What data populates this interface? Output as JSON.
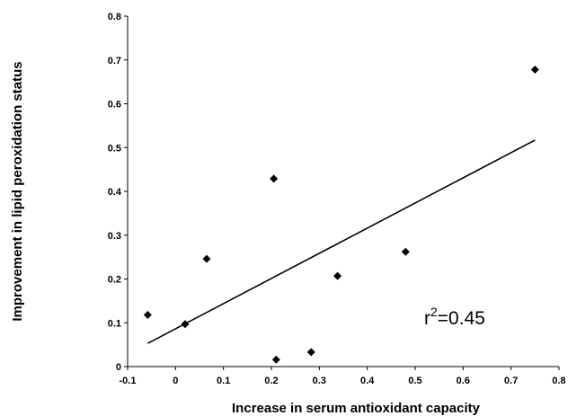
{
  "chart_data": {
    "type": "scatter",
    "xlabel": "Increase in serum antioxidant capacity",
    "ylabel": "Improvement in lipid peroxidation status",
    "xlim": [
      -0.1,
      0.8
    ],
    "ylim": [
      0,
      0.8
    ],
    "xticks": [
      "-0.1",
      "0",
      "0.1",
      "0.2",
      "0.3",
      "0.4",
      "0.5",
      "0.6",
      "0.7",
      "0.8"
    ],
    "yticks": [
      "0",
      "0.1",
      "0.2",
      "0.3",
      "0.4",
      "0.5",
      "0.6",
      "0.7",
      "0.8"
    ],
    "grid": false,
    "points": [
      {
        "x": -0.058,
        "y": 0.118
      },
      {
        "x": 0.02,
        "y": 0.097
      },
      {
        "x": 0.065,
        "y": 0.246
      },
      {
        "x": 0.205,
        "y": 0.429
      },
      {
        "x": 0.21,
        "y": 0.016
      },
      {
        "x": 0.283,
        "y": 0.033
      },
      {
        "x": 0.338,
        "y": 0.207
      },
      {
        "x": 0.48,
        "y": 0.262
      },
      {
        "x": 0.75,
        "y": 0.678
      }
    ],
    "trendline": {
      "x": [
        -0.058,
        0.75
      ],
      "y": [
        0.053,
        0.517
      ]
    },
    "annotation": {
      "prefix": "r",
      "superscript": "2",
      "suffix": "=0.45"
    },
    "marker_color": "#000000"
  }
}
